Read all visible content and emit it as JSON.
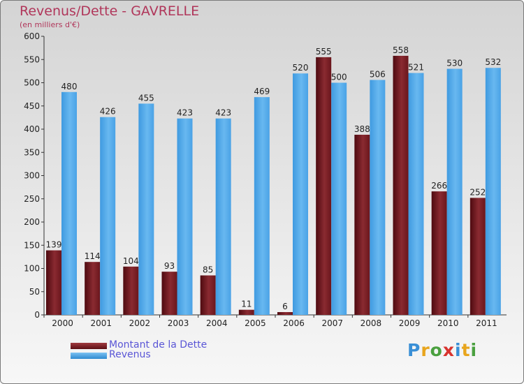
{
  "chart_data": {
    "type": "bar",
    "title": "Revenus/Dette - GAVRELLE",
    "subtitle": "(en milliers d'€)",
    "categories": [
      "2000",
      "2001",
      "2002",
      "2003",
      "2004",
      "2005",
      "2006",
      "2007",
      "2008",
      "2009",
      "2010",
      "2011"
    ],
    "series": [
      {
        "name": "Montant de la Dette",
        "color": "#7a1d24",
        "values": [
          139,
          114,
          104,
          93,
          85,
          11,
          6,
          555,
          388,
          558,
          266,
          252
        ]
      },
      {
        "name": "Revenus",
        "color": "#4ea6e6",
        "values": [
          480,
          426,
          455,
          423,
          423,
          469,
          520,
          500,
          506,
          521,
          530,
          532
        ]
      }
    ],
    "ylim": [
      0,
      600
    ],
    "yticks": [
      0,
      50,
      100,
      150,
      200,
      250,
      300,
      350,
      400,
      450,
      500,
      550,
      600
    ],
    "grid": false,
    "legend_position": "bottom-left"
  },
  "logo": {
    "letters": [
      "P",
      "r",
      "o",
      "x",
      "i",
      "t",
      "i"
    ],
    "colors": [
      "#3a8fd6",
      "#e8a51d",
      "#4aa03f",
      "#d8332e",
      "#3a8fd6",
      "#e8a51d",
      "#4aa03f"
    ]
  }
}
